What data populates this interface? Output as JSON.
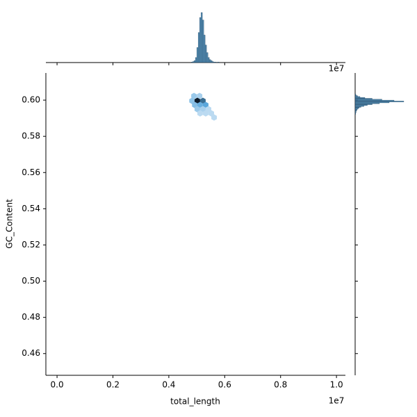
{
  "chart_data": {
    "type": "hexbin",
    "x_label": "total_length",
    "y_label": "GC_Content",
    "x_offset": "1e7",
    "x": [
      0.49,
      0.51,
      0.483,
      0.502,
      0.522,
      0.493,
      0.512,
      0.532,
      0.502,
      0.522,
      0.542,
      0.552,
      0.512,
      0.532,
      0.562
    ],
    "y": [
      0.6023,
      0.6023,
      0.5996,
      0.5996,
      0.5996,
      0.5973,
      0.5973,
      0.5973,
      0.595,
      0.595,
      0.595,
      0.5927,
      0.5927,
      0.5927,
      0.5904
    ],
    "counts": [
      3,
      2,
      4,
      40,
      20,
      5,
      8,
      10,
      3,
      2,
      1,
      1,
      1,
      1,
      1
    ],
    "xlim": [
      -0.04,
      1.032
    ],
    "ylim": [
      0.448,
      0.615
    ],
    "xticks": [
      {
        "value": 0,
        "label": "0.0"
      },
      0.2,
      0.4,
      0.6,
      0.8,
      {
        "value": 1,
        "label": "1.0"
      }
    ],
    "yticks": [
      0.46,
      0.48,
      {
        "value": 0.5,
        "label": "0.50"
      },
      0.52,
      0.54,
      0.56,
      0.58,
      {
        "value": 0.6,
        "label": "0.60"
      }
    ],
    "color": "#3274a1",
    "x_hist": {
      "bins": [
        0.48,
        0.485,
        0.49,
        0.495,
        0.5,
        0.505,
        0.51,
        0.515,
        0.52,
        0.525,
        0.53,
        0.535,
        0.54,
        0.545,
        0.55,
        0.555,
        0.56,
        0.565,
        0.57,
        0.575,
        0.58
      ],
      "counts": [
        1,
        2,
        4,
        10,
        30,
        60,
        90,
        100,
        85,
        55,
        35,
        20,
        10,
        6,
        4,
        2,
        1,
        1,
        0,
        1
      ]
    },
    "y_hist": {
      "bins": [
        0.592,
        0.5925,
        0.593,
        0.5935,
        0.594,
        0.5945,
        0.595,
        0.5955,
        0.596,
        0.5965,
        0.597,
        0.5975,
        0.598,
        0.5985,
        0.599,
        0.5995,
        0.6,
        0.6005,
        0.601,
        0.6015,
        0.602,
        0.6025,
        0.603,
        0.6035
      ],
      "counts": [
        1,
        1,
        2,
        2,
        3,
        4,
        6,
        8,
        12,
        18,
        25,
        35,
        50,
        70,
        100,
        80,
        55,
        35,
        20,
        10,
        5,
        2,
        1
      ]
    }
  }
}
